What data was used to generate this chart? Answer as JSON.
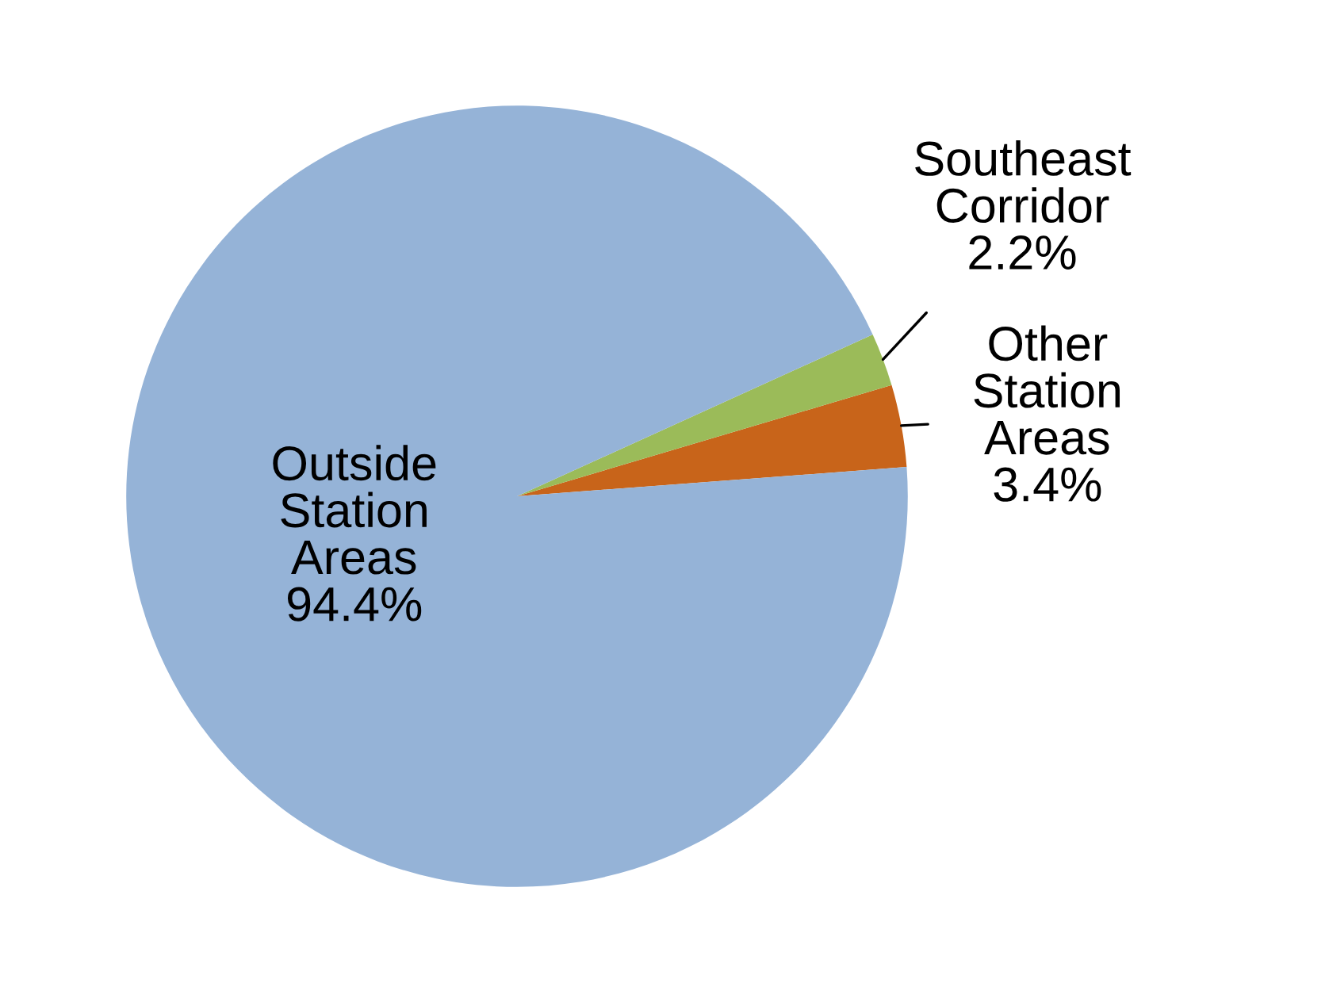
{
  "chart_data": {
    "type": "pie",
    "categories": [
      "Other Station Areas",
      "Southeast Corridor",
      "Outside Station Areas"
    ],
    "values": [
      3.4,
      2.2,
      94.4
    ],
    "colors": [
      "#c8641a",
      "#9bbb59",
      "#95b3d7"
    ],
    "value_labels": [
      "3.4%",
      "2.2%",
      "94.4%"
    ]
  }
}
